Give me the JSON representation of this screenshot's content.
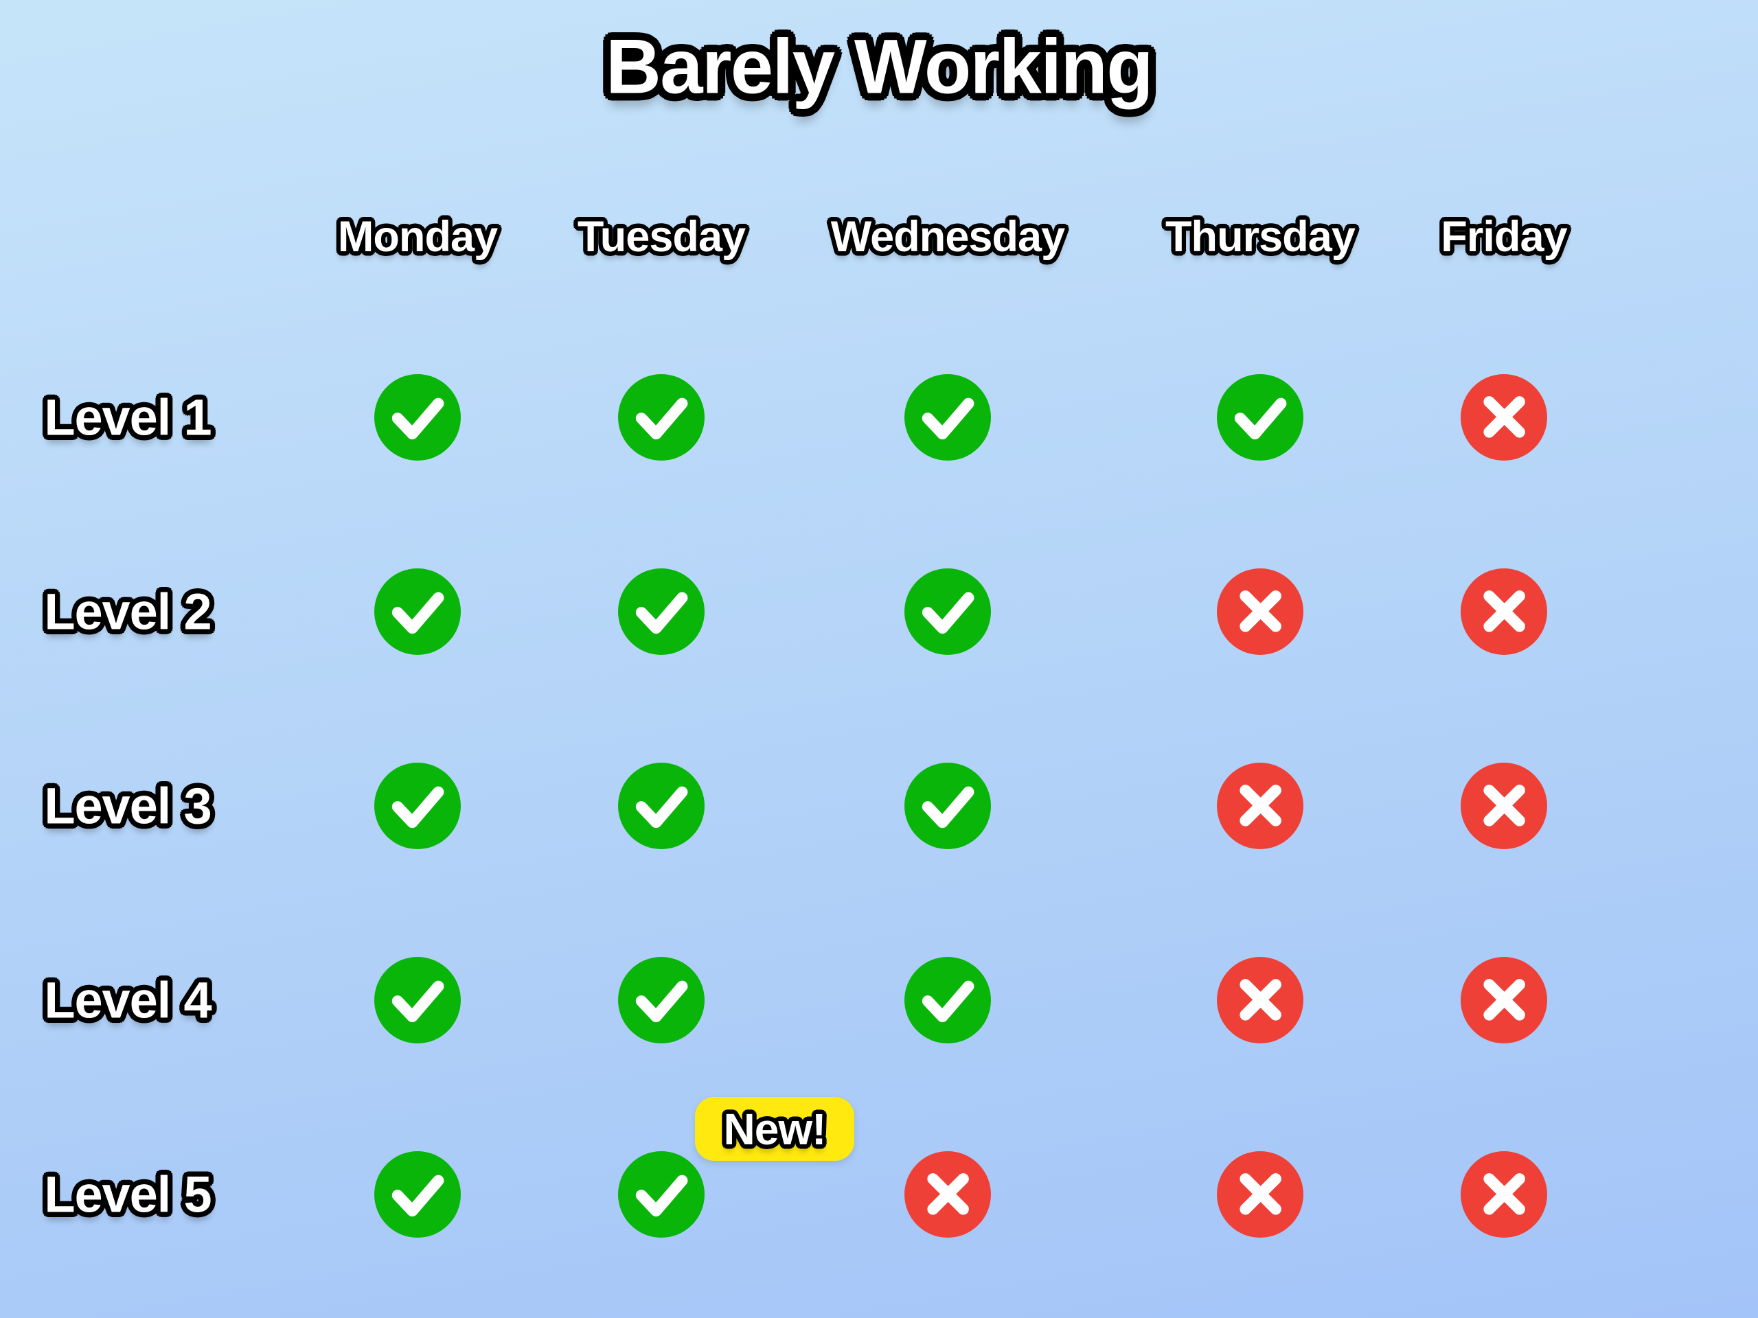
{
  "title": "Barely Working",
  "chart_data": {
    "type": "table",
    "title": "Barely Working",
    "columns": [
      "Monday",
      "Tuesday",
      "Wednesday",
      "Thursday",
      "Friday"
    ],
    "rows": [
      "Level 1",
      "Level 2",
      "Level 3",
      "Level 4",
      "Level 5"
    ],
    "values": [
      [
        "check",
        "check",
        "check",
        "check",
        "cross"
      ],
      [
        "check",
        "check",
        "check",
        "cross",
        "cross"
      ],
      [
        "check",
        "check",
        "check",
        "cross",
        "cross"
      ],
      [
        "check",
        "check",
        "check",
        "cross",
        "cross"
      ],
      [
        "check",
        "check",
        "cross",
        "cross",
        "cross"
      ]
    ],
    "annotations": [
      {
        "text": "New!",
        "row": "Level 5",
        "column": "Tuesday",
        "position": "above-icon"
      }
    ],
    "legend": null,
    "grid": false
  },
  "icons": {
    "check": "check-circle-icon",
    "cross": "x-circle-icon"
  },
  "colors": {
    "background_top": "#c6e4f9",
    "background_bottom": "#a3c4f8",
    "check_green": "#08b508",
    "cross_red": "#ee4036",
    "badge_yellow": "#ffe90f",
    "text_fill": "#ffffff",
    "text_outline": "#000000"
  }
}
